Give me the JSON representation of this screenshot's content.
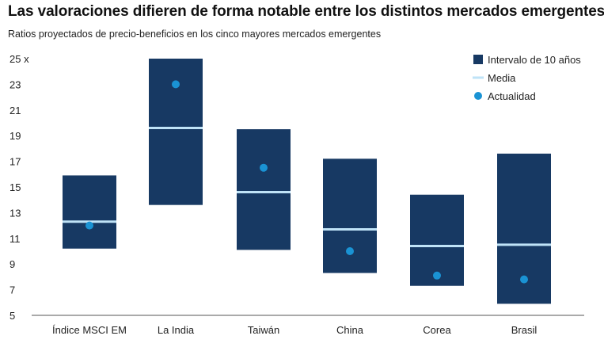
{
  "chart_data": {
    "type": "range-bar",
    "title": "Las valoraciones difieren de forma notable entre los distintos mercados emergentes",
    "subtitle": "Ratios proyectados de precio-beneficios en los cinco mayores mercados emergentes",
    "y_unit_label": "25 x",
    "ylim": [
      5,
      25
    ],
    "y_ticks": [
      5,
      7,
      9,
      11,
      13,
      15,
      17,
      19,
      21,
      23,
      25
    ],
    "categories": [
      "Índice MSCI EM",
      "La India",
      "Taiwán",
      "China",
      "Corea",
      "Brasil"
    ],
    "series": [
      {
        "name": "Intervalo de 10 años",
        "low": [
          10.2,
          13.6,
          10.1,
          8.3,
          7.3,
          5.9
        ],
        "high": [
          15.9,
          25.0,
          19.5,
          17.2,
          14.4,
          17.6
        ]
      },
      {
        "name": "Media",
        "values": [
          12.3,
          19.6,
          14.6,
          11.7,
          10.4,
          10.5
        ]
      },
      {
        "name": "Actualidad",
        "values": [
          12.0,
          23.0,
          16.5,
          10.0,
          8.1,
          7.8
        ]
      }
    ],
    "legend": {
      "position": "top-right",
      "items": [
        "Intervalo de 10 años",
        "Media",
        "Actualidad"
      ]
    },
    "colors": {
      "range": "#173963",
      "mean": "#bfe3f7",
      "current": "#1a93d4",
      "axis": "#555555"
    }
  }
}
